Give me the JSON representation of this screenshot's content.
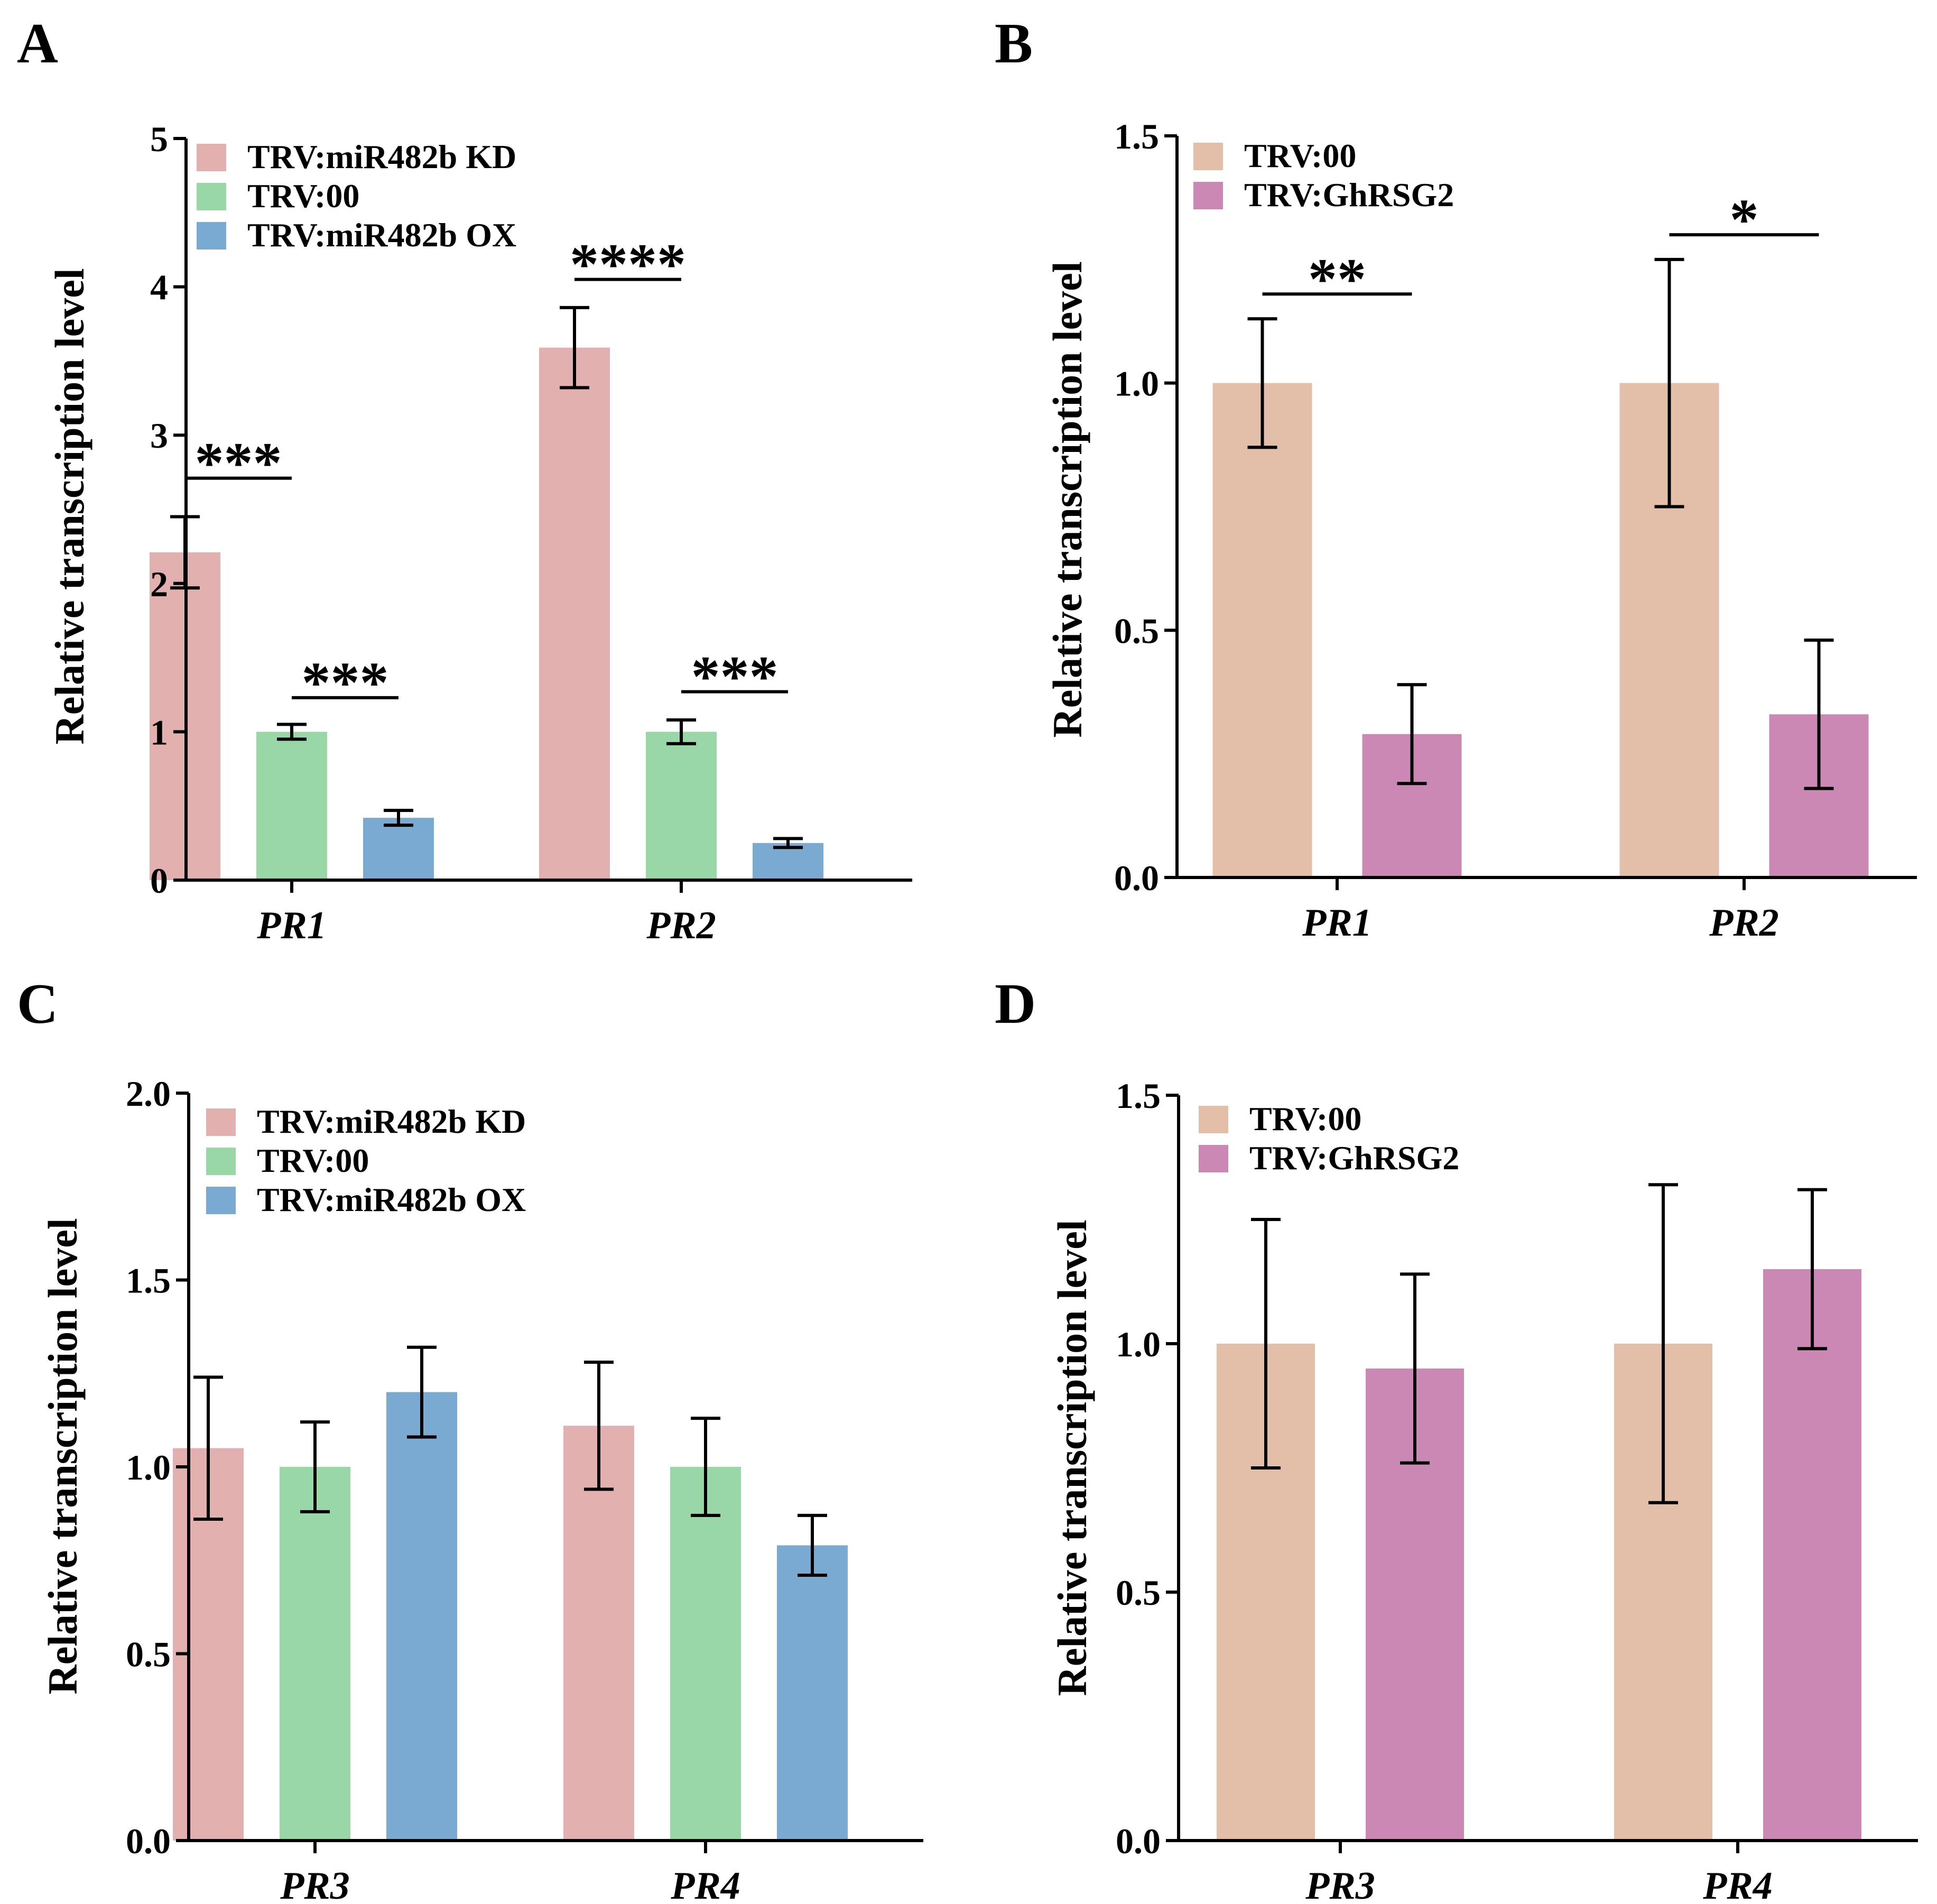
{
  "chart_data": [
    {
      "panel": "A",
      "type": "bar",
      "ylabel": "Relative transcription level",
      "ylim": [
        0,
        5
      ],
      "yticks": [
        "0",
        "1",
        "2",
        "3",
        "4",
        "5"
      ],
      "categories": [
        "PR1",
        "PR2"
      ],
      "series": [
        {
          "name": "TRV:miR482b KD",
          "color": "#e2b0ae",
          "values": [
            2.21,
            3.59
          ],
          "errors": [
            0.24,
            0.27
          ]
        },
        {
          "name": "TRV:00",
          "color": "#99d8a6",
          "values": [
            1.0,
            1.0
          ],
          "errors": [
            0.05,
            0.08
          ]
        },
        {
          "name": "TRV:miR482b OX",
          "color": "#7aa9d1",
          "values": [
            0.42,
            0.25
          ],
          "errors": [
            0.05,
            0.03
          ]
        }
      ],
      "significance": [
        {
          "category": 0,
          "from": 0,
          "to": 1,
          "y": 2.71,
          "label": "***"
        },
        {
          "category": 0,
          "from": 1,
          "to": 2,
          "y": 1.23,
          "label": "***"
        },
        {
          "category": 1,
          "from": 0,
          "to": 1,
          "y": 4.05,
          "label": "****"
        },
        {
          "category": 1,
          "from": 1,
          "to": 2,
          "y": 1.27,
          "label": "***"
        }
      ]
    },
    {
      "panel": "B",
      "type": "bar",
      "ylabel": "Relative transcription level",
      "ylim": [
        0,
        1.5
      ],
      "yticks": [
        "0.0",
        "0.5",
        "1.0",
        "1.5"
      ],
      "categories": [
        "PR1",
        "PR2"
      ],
      "series": [
        {
          "name": "TRV:00",
          "color": "#e3bea8",
          "values": [
            1.0,
            1.0
          ],
          "errors": [
            0.13,
            0.25
          ]
        },
        {
          "name": "TRV:GhRSG2",
          "color": "#cb88b5",
          "values": [
            0.29,
            0.33
          ],
          "errors": [
            0.1,
            0.15
          ]
        }
      ],
      "significance": [
        {
          "category": 0,
          "from": 0,
          "to": 1,
          "y": 1.18,
          "label": "**"
        },
        {
          "category": 1,
          "from": 0,
          "to": 1,
          "y": 1.3,
          "label": "*"
        }
      ]
    },
    {
      "panel": "C",
      "type": "bar",
      "ylabel": "Relative transcription level",
      "ylim": [
        0,
        2.0
      ],
      "yticks": [
        "0.0",
        "0.5",
        "1.0",
        "1.5",
        "2.0"
      ],
      "categories": [
        "PR3",
        "PR4"
      ],
      "series": [
        {
          "name": "TRV:miR482b KD",
          "color": "#e2b0ae",
          "values": [
            1.05,
            1.11
          ],
          "errors": [
            0.19,
            0.17
          ]
        },
        {
          "name": "TRV:00",
          "color": "#99d8a6",
          "values": [
            1.0,
            1.0
          ],
          "errors": [
            0.12,
            0.13
          ]
        },
        {
          "name": "TRV:miR482b OX",
          "color": "#7aa9d1",
          "values": [
            1.2,
            0.79
          ],
          "errors": [
            0.12,
            0.08
          ]
        }
      ],
      "significance": []
    },
    {
      "panel": "D",
      "type": "bar",
      "ylabel": "Relative transcription level",
      "ylim": [
        0,
        1.5
      ],
      "yticks": [
        "0.0",
        "0.5",
        "1.0",
        "1.5"
      ],
      "categories": [
        "PR3",
        "PR4"
      ],
      "series": [
        {
          "name": "TRV:00",
          "color": "#e3bea8",
          "values": [
            1.0,
            1.0
          ],
          "errors": [
            0.25,
            0.32
          ]
        },
        {
          "name": "TRV:GhRSG2",
          "color": "#cb88b5",
          "values": [
            0.95,
            1.15
          ],
          "errors": [
            0.19,
            0.16
          ]
        }
      ],
      "significance": []
    }
  ]
}
